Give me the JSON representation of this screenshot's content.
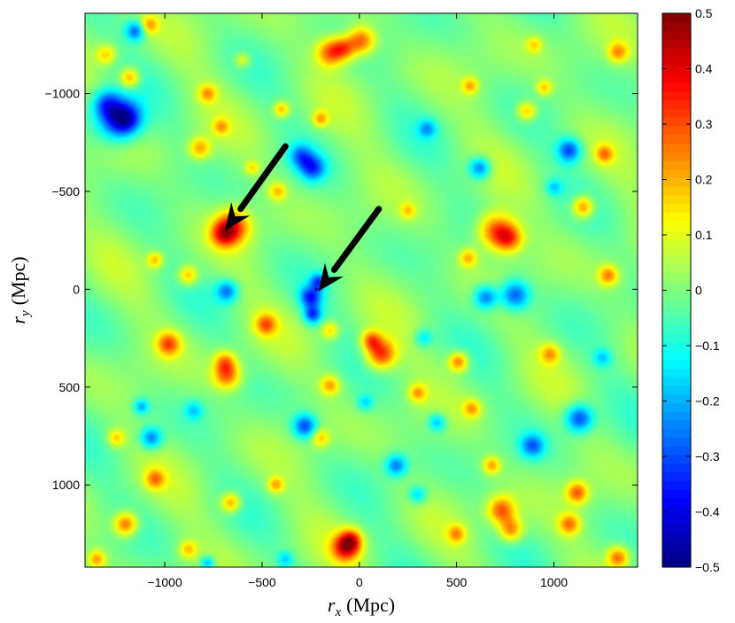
{
  "chart_data": {
    "type": "heatmap",
    "title": "",
    "xlabel": {
      "symbol": "r",
      "subscript": "x",
      "unit": "(Mpc)"
    },
    "ylabel": {
      "symbol": "r",
      "subscript": "y",
      "unit": "(Mpc)"
    },
    "xlim": [
      -1410,
      1430
    ],
    "ylim": [
      1420,
      -1410
    ],
    "y_axis_direction": "increasing downward",
    "x_ticks": [
      {
        "value": -1000,
        "label": "−1000"
      },
      {
        "value": -500,
        "label": "−500"
      },
      {
        "value": 0,
        "label": "0"
      },
      {
        "value": 500,
        "label": "500"
      },
      {
        "value": 1000,
        "label": "1000"
      }
    ],
    "y_ticks": [
      {
        "value": -1000,
        "label": "−1000"
      },
      {
        "value": -500,
        "label": "−500"
      },
      {
        "value": 0,
        "label": "0"
      },
      {
        "value": 500,
        "label": "500"
      },
      {
        "value": 1000,
        "label": "1000"
      }
    ],
    "colorbar": {
      "colormap": "jet",
      "range": [
        -0.5,
        0.5
      ],
      "ticks": [
        {
          "value": 0.5,
          "label": "0.5"
        },
        {
          "value": 0.4,
          "label": "0.4"
        },
        {
          "value": 0.3,
          "label": "0.3"
        },
        {
          "value": 0.2,
          "label": "0.2"
        },
        {
          "value": 0.1,
          "label": "0.1"
        },
        {
          "value": 0,
          "label": "0"
        },
        {
          "value": -0.1,
          "label": "−0.1"
        },
        {
          "value": -0.2,
          "label": "−0.2"
        },
        {
          "value": -0.3,
          "label": "−0.3"
        },
        {
          "value": -0.4,
          "label": "−0.4"
        },
        {
          "value": -0.5,
          "label": "−0.5"
        }
      ]
    },
    "background_value": 0.0,
    "features": [
      {
        "x": -1250,
        "y": -870,
        "v": -0.3,
        "r": 110
      },
      {
        "x": -1200,
        "y": -870,
        "v": -0.28,
        "r": 80
      },
      {
        "x": -1300,
        "y": -950,
        "v": -0.22,
        "r": 70
      },
      {
        "x": -1150,
        "y": -1320,
        "v": -0.28,
        "r": 50
      },
      {
        "x": -1180,
        "y": -1080,
        "v": 0.25,
        "r": 50
      },
      {
        "x": -1300,
        "y": -1200,
        "v": 0.18,
        "r": 50
      },
      {
        "x": -1080,
        "y": -1350,
        "v": 0.2,
        "r": 45
      },
      {
        "x": -780,
        "y": -1000,
        "v": 0.2,
        "r": 45
      },
      {
        "x": -820,
        "y": -720,
        "v": 0.22,
        "r": 55
      },
      {
        "x": -710,
        "y": -830,
        "v": 0.18,
        "r": 40
      },
      {
        "x": -650,
        "y": -320,
        "v": 0.32,
        "r": 85
      },
      {
        "x": -700,
        "y": -280,
        "v": 0.25,
        "r": 65
      },
      {
        "x": -400,
        "y": -920,
        "v": 0.22,
        "r": 40
      },
      {
        "x": -420,
        "y": -500,
        "v": 0.18,
        "r": 45
      },
      {
        "x": -150,
        "y": -1210,
        "v": 0.28,
        "r": 70
      },
      {
        "x": 10,
        "y": -1270,
        "v": 0.3,
        "r": 70
      },
      {
        "x": -80,
        "y": -1230,
        "v": 0.25,
        "r": 60
      },
      {
        "x": -240,
        "y": -620,
        "v": -0.28,
        "r": 65
      },
      {
        "x": -300,
        "y": -680,
        "v": -0.22,
        "r": 60
      },
      {
        "x": -200,
        "y": -870,
        "v": 0.2,
        "r": 40
      },
      {
        "x": -250,
        "y": 40,
        "v": -0.32,
        "r": 55
      },
      {
        "x": -240,
        "y": 130,
        "v": -0.3,
        "r": 45
      },
      {
        "x": -210,
        "y": -40,
        "v": -0.26,
        "r": 40
      },
      {
        "x": -220,
        "y": 0,
        "v": -0.5,
        "r": 6
      },
      {
        "x": -680,
        "y": 10,
        "v": -0.25,
        "r": 55
      },
      {
        "x": -1050,
        "y": -150,
        "v": 0.2,
        "r": 40
      },
      {
        "x": -880,
        "y": -70,
        "v": 0.22,
        "r": 50
      },
      {
        "x": -980,
        "y": 280,
        "v": 0.28,
        "r": 60
      },
      {
        "x": -480,
        "y": 180,
        "v": 0.25,
        "r": 55
      },
      {
        "x": 110,
        "y": 330,
        "v": 0.35,
        "r": 75
      },
      {
        "x": 60,
        "y": 260,
        "v": 0.25,
        "r": 50
      },
      {
        "x": -150,
        "y": 490,
        "v": 0.22,
        "r": 50
      },
      {
        "x": -680,
        "y": 440,
        "v": 0.28,
        "r": 70
      },
      {
        "x": -690,
        "y": 370,
        "v": 0.22,
        "r": 55
      },
      {
        "x": -150,
        "y": 210,
        "v": 0.18,
        "r": 45
      },
      {
        "x": -280,
        "y": 700,
        "v": -0.3,
        "r": 60
      },
      {
        "x": -1070,
        "y": 760,
        "v": -0.26,
        "r": 55
      },
      {
        "x": -1120,
        "y": 600,
        "v": -0.2,
        "r": 40
      },
      {
        "x": -1250,
        "y": 760,
        "v": 0.18,
        "r": 45
      },
      {
        "x": -1200,
        "y": 1200,
        "v": 0.3,
        "r": 60
      },
      {
        "x": -1050,
        "y": 970,
        "v": 0.22,
        "r": 50
      },
      {
        "x": -660,
        "y": 1090,
        "v": 0.25,
        "r": 50
      },
      {
        "x": -200,
        "y": 760,
        "v": 0.18,
        "r": 45
      },
      {
        "x": 190,
        "y": 900,
        "v": -0.25,
        "r": 55
      },
      {
        "x": -430,
        "y": 1000,
        "v": 0.2,
        "r": 40
      },
      {
        "x": -70,
        "y": 1320,
        "v": 0.35,
        "r": 70
      },
      {
        "x": -40,
        "y": 1280,
        "v": 0.25,
        "r": 55
      },
      {
        "x": -880,
        "y": 1330,
        "v": 0.18,
        "r": 45
      },
      {
        "x": -780,
        "y": 1400,
        "v": -0.22,
        "r": 35
      },
      {
        "x": 510,
        "y": 370,
        "v": 0.28,
        "r": 50
      },
      {
        "x": 300,
        "y": 530,
        "v": 0.2,
        "r": 45
      },
      {
        "x": 700,
        "y": -300,
        "v": 0.3,
        "r": 90
      },
      {
        "x": 770,
        "y": -260,
        "v": 0.28,
        "r": 70
      },
      {
        "x": 800,
        "y": 30,
        "v": -0.3,
        "r": 75
      },
      {
        "x": 650,
        "y": 40,
        "v": -0.28,
        "r": 60
      },
      {
        "x": 560,
        "y": -160,
        "v": 0.2,
        "r": 45
      },
      {
        "x": 620,
        "y": -620,
        "v": -0.28,
        "r": 55
      },
      {
        "x": 570,
        "y": -1040,
        "v": 0.2,
        "r": 40
      },
      {
        "x": 860,
        "y": -910,
        "v": 0.22,
        "r": 50
      },
      {
        "x": 1080,
        "y": -710,
        "v": -0.3,
        "r": 60
      },
      {
        "x": 1260,
        "y": -690,
        "v": 0.22,
        "r": 45
      },
      {
        "x": 1150,
        "y": -420,
        "v": 0.28,
        "r": 55
      },
      {
        "x": 1330,
        "y": -1210,
        "v": 0.22,
        "r": 50
      },
      {
        "x": 950,
        "y": -1030,
        "v": 0.18,
        "r": 40
      },
      {
        "x": 1280,
        "y": -70,
        "v": 0.25,
        "r": 50
      },
      {
        "x": 1130,
        "y": 660,
        "v": -0.32,
        "r": 70
      },
      {
        "x": 980,
        "y": 330,
        "v": 0.2,
        "r": 50
      },
      {
        "x": 890,
        "y": 800,
        "v": -0.25,
        "r": 60
      },
      {
        "x": 680,
        "y": 900,
        "v": 0.22,
        "r": 45
      },
      {
        "x": 580,
        "y": 610,
        "v": 0.2,
        "r": 45
      },
      {
        "x": 400,
        "y": 680,
        "v": -0.2,
        "r": 45
      },
      {
        "x": 730,
        "y": 1130,
        "v": 0.3,
        "r": 70
      },
      {
        "x": 780,
        "y": 1230,
        "v": 0.26,
        "r": 60
      },
      {
        "x": 1120,
        "y": 1040,
        "v": 0.28,
        "r": 55
      },
      {
        "x": 1080,
        "y": 1200,
        "v": 0.25,
        "r": 55
      },
      {
        "x": 1330,
        "y": 1370,
        "v": 0.28,
        "r": 55
      },
      {
        "x": 500,
        "y": 1250,
        "v": 0.2,
        "r": 45
      },
      {
        "x": 300,
        "y": 1050,
        "v": -0.18,
        "r": 45
      },
      {
        "x": -600,
        "y": -1170,
        "v": 0.15,
        "r": 40
      },
      {
        "x": 350,
        "y": -820,
        "v": -0.18,
        "r": 45
      },
      {
        "x": 900,
        "y": -1250,
        "v": 0.15,
        "r": 40
      },
      {
        "x": 250,
        "y": -400,
        "v": 0.15,
        "r": 40
      },
      {
        "x": 330,
        "y": 250,
        "v": -0.15,
        "r": 45
      },
      {
        "x": -850,
        "y": 620,
        "v": -0.15,
        "r": 45
      },
      {
        "x": 1250,
        "y": 350,
        "v": -0.15,
        "r": 45
      },
      {
        "x": -1350,
        "y": 1380,
        "v": 0.22,
        "r": 45
      },
      {
        "x": -380,
        "y": 1380,
        "v": -0.15,
        "r": 40
      },
      {
        "x": 30,
        "y": 580,
        "v": -0.15,
        "r": 40
      },
      {
        "x": -550,
        "y": -620,
        "v": 0.15,
        "r": 35
      },
      {
        "x": 1000,
        "y": -520,
        "v": -0.15,
        "r": 40
      }
    ],
    "annotations": [
      {
        "type": "arrow",
        "from": {
          "x": -380,
          "y": -730
        },
        "to": {
          "x": -690,
          "y": -300
        }
      },
      {
        "type": "arrow",
        "from": {
          "x": 100,
          "y": -410
        },
        "to": {
          "x": -210,
          "y": 10
        }
      }
    ]
  }
}
